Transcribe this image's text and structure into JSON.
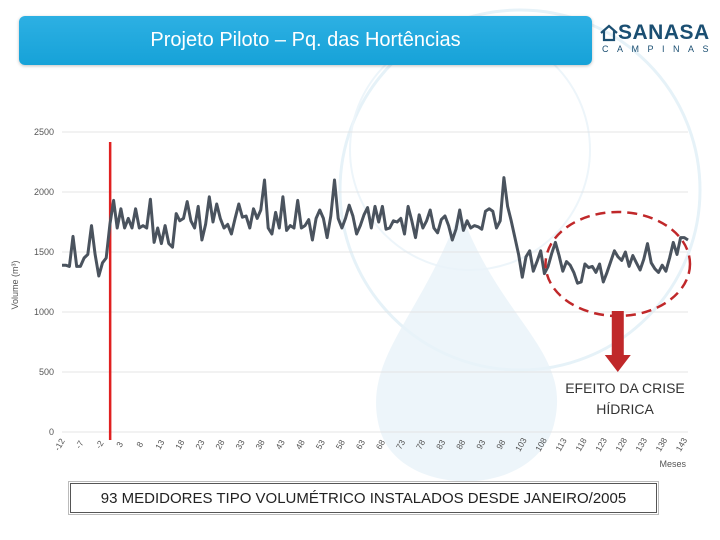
{
  "header": {
    "title": "Projeto Piloto – Pq. das Hortências"
  },
  "logo": {
    "name": "SANASA",
    "subtitle": "CAMPINAS"
  },
  "annotation": {
    "line1": "EFEITO DA CRISE",
    "line2": "HÍDRICA"
  },
  "footer": {
    "text": "93 MEDIDORES TIPO VOLUMÉTRICO INSTALADOS DESDE JANEIRO/2005"
  },
  "colors": {
    "series": "#4a535e",
    "marker_line": "#e02020",
    "highlight": "#c0282a",
    "arrow": "#c0282a",
    "title_bg": "#1ea9df"
  },
  "chart_data": {
    "type": "line",
    "ylabel": "Volume (m³)",
    "xlabel": "Meses",
    "ylim": [
      0,
      2500
    ],
    "yticks": [
      0,
      500,
      1000,
      1500,
      2000,
      2500
    ],
    "xlim": [
      -12,
      144
    ],
    "xticks": [
      -12,
      -7,
      -2,
      3,
      8,
      13,
      18,
      23,
      28,
      33,
      38,
      43,
      48,
      53,
      58,
      63,
      68,
      73,
      78,
      83,
      88,
      93,
      98,
      103,
      108,
      113,
      118,
      123,
      128,
      133,
      138,
      143
    ],
    "xtick_labels": [
      "-12",
      "-7",
      "-2",
      "3",
      "8",
      "13",
      "18",
      "23",
      "28",
      "33",
      "38",
      "43",
      "48",
      "53",
      "58",
      "63",
      "68",
      "73",
      "78",
      "83",
      "88",
      "93",
      "98",
      "103",
      "108",
      "113",
      "118",
      "123",
      "128",
      "133",
      "138",
      "143"
    ],
    "vline_x": 0,
    "highlight_x_range": [
      109,
      144
    ],
    "series": [
      {
        "values": [
          1390,
          1390,
          1380,
          1630,
          1380,
          1380,
          1450,
          1480,
          1720,
          1480,
          1300,
          1410,
          1450,
          1730,
          1930,
          1700,
          1860,
          1700,
          1780,
          1700,
          1860,
          1700,
          1720,
          1700,
          1940,
          1580,
          1700,
          1570,
          1720,
          1570,
          1540,
          1820,
          1760,
          1780,
          1920,
          1760,
          1700,
          1880,
          1600,
          1730,
          1960,
          1750,
          1900,
          1780,
          1700,
          1730,
          1650,
          1780,
          1900,
          1790,
          1800,
          1700,
          1860,
          1780,
          1850,
          2100,
          1700,
          1650,
          1830,
          1700,
          1960,
          1680,
          1720,
          1700,
          1930,
          1700,
          1720,
          1770,
          1600,
          1780,
          1850,
          1780,
          1620,
          1800,
          2100,
          1780,
          1700,
          1780,
          1890,
          1800,
          1650,
          1720,
          1810,
          1870,
          1700,
          1880,
          1750,
          1880,
          1690,
          1700,
          1760,
          1750,
          1780,
          1650,
          1880,
          1760,
          1620,
          1810,
          1700,
          1760,
          1850,
          1700,
          1660,
          1770,
          1800,
          1720,
          1600,
          1690,
          1850,
          1680,
          1760,
          1700,
          1720,
          1710,
          1690,
          1840,
          1860,
          1840,
          1700,
          1760,
          2120,
          1880,
          1760,
          1620,
          1480,
          1290,
          1460,
          1510,
          1340,
          1420,
          1510,
          1320,
          1380,
          1490,
          1580,
          1470,
          1340,
          1420,
          1390,
          1330,
          1240,
          1250,
          1400,
          1370,
          1380,
          1330,
          1400,
          1250,
          1330,
          1420,
          1510,
          1460,
          1430,
          1500,
          1380,
          1470,
          1410,
          1350,
          1440,
          1570,
          1410,
          1360,
          1330,
          1390,
          1340,
          1450,
          1580,
          1480,
          1620,
          1620,
          1600
        ]
      }
    ]
  }
}
